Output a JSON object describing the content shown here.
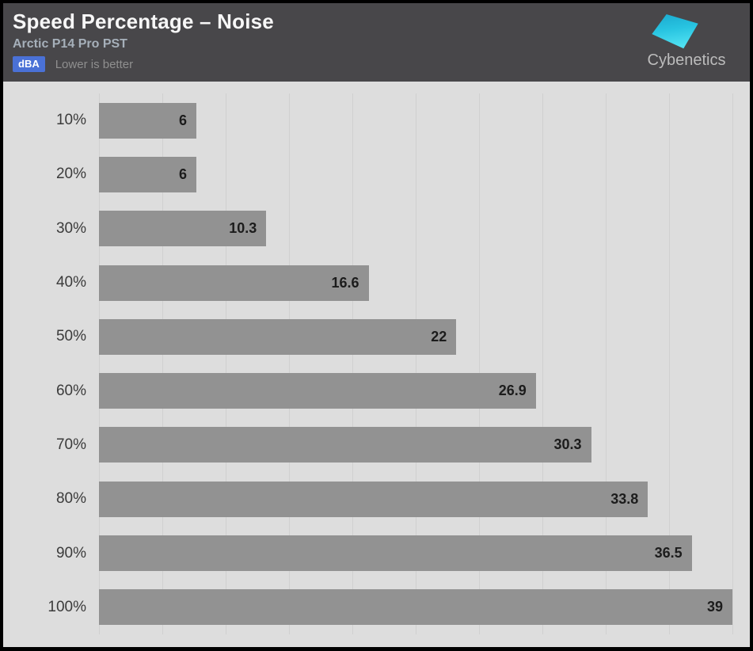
{
  "header": {
    "title": "Speed Percentage – Noise",
    "subtitle": "Arctic P14 Pro PST",
    "unit_badge": "dBA",
    "note": "Lower is better",
    "brand": "Cybenetics"
  },
  "colors": {
    "header_bg": "#48474a",
    "badge_bg": "#4a71d6",
    "chart_bg": "#dddddd",
    "gridline": "#d0d0d0",
    "bar": "#929292",
    "logo_cyan_top": "#1aa9cf",
    "logo_cyan_bottom": "#4fe0f1"
  },
  "chart_data": {
    "type": "bar",
    "orientation": "horizontal",
    "title": "Speed Percentage – Noise",
    "subtitle": "Arctic P14 Pro PST",
    "unit": "dBA",
    "note": "Lower is better",
    "categories": [
      "10%",
      "20%",
      "30%",
      "40%",
      "50%",
      "60%",
      "70%",
      "80%",
      "90%",
      "100%"
    ],
    "values": [
      6,
      6,
      10.3,
      16.6,
      22,
      26.9,
      30.3,
      33.8,
      36.5,
      39
    ],
    "xlabel": "",
    "ylabel": "",
    "xlim": [
      0,
      39
    ],
    "gridline_count": 11,
    "grid": "vertical",
    "legend": "none",
    "value_labels": "inside-end"
  }
}
